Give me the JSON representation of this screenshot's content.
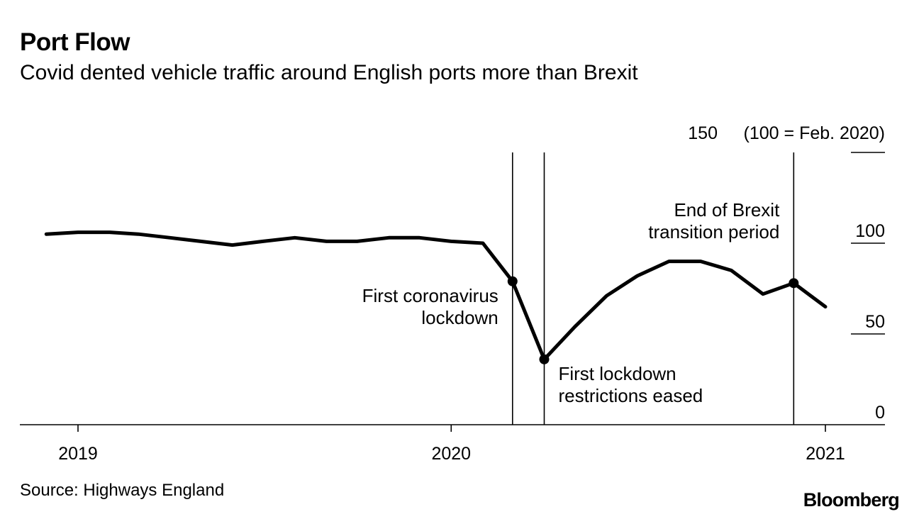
{
  "title": "Port Flow",
  "subtitle": "Covid dented vehicle traffic around English ports more than Brexit",
  "source": "Source: Highways England",
  "brand": "Bloomberg",
  "colors": {
    "line": "#000000",
    "background": "#ffffff"
  },
  "chart_data": {
    "type": "line",
    "title": "Port Flow",
    "subtitle": "Covid dented vehicle traffic around English ports more than Brexit",
    "unit_label": "(100 = Feb. 2020)",
    "ylim": [
      0,
      150
    ],
    "y_ticks": [
      0,
      50,
      100,
      150
    ],
    "y_axis_position": "right",
    "x_ticks": [
      "2019",
      "2020",
      "2021"
    ],
    "xlim": [
      "2018-11-01",
      "2021-03-01"
    ],
    "grid": false,
    "series": [
      {
        "x": [
          "2018-12-01",
          "2019-01-01",
          "2019-02-01",
          "2019-03-01",
          "2019-04-01",
          "2019-05-01",
          "2019-06-01",
          "2019-07-01",
          "2019-08-01",
          "2019-09-01",
          "2019-10-01",
          "2019-11-01",
          "2019-12-01",
          "2020-01-01",
          "2020-02-01",
          "2020-03-01",
          "2020-04-01",
          "2020-05-01",
          "2020-06-01",
          "2020-07-01",
          "2020-08-01",
          "2020-09-01",
          "2020-10-01",
          "2020-11-01",
          "2020-12-01",
          "2021-01-01"
        ],
        "values": [
          105,
          106,
          106,
          105,
          103,
          101,
          99,
          101,
          103,
          101,
          101,
          103,
          103,
          101,
          100,
          79,
          36,
          54,
          71,
          82,
          90,
          90,
          85,
          72,
          78,
          65
        ]
      }
    ],
    "annotations": [
      {
        "date": "2020-03-01",
        "lines": [
          "First coronavirus",
          "lockdown"
        ]
      },
      {
        "date": "2020-04-01",
        "lines": [
          "First lockdown",
          "restrictions eased"
        ]
      },
      {
        "date": "2020-12-01",
        "lines": [
          "End of Brexit",
          "transition period"
        ]
      }
    ]
  }
}
